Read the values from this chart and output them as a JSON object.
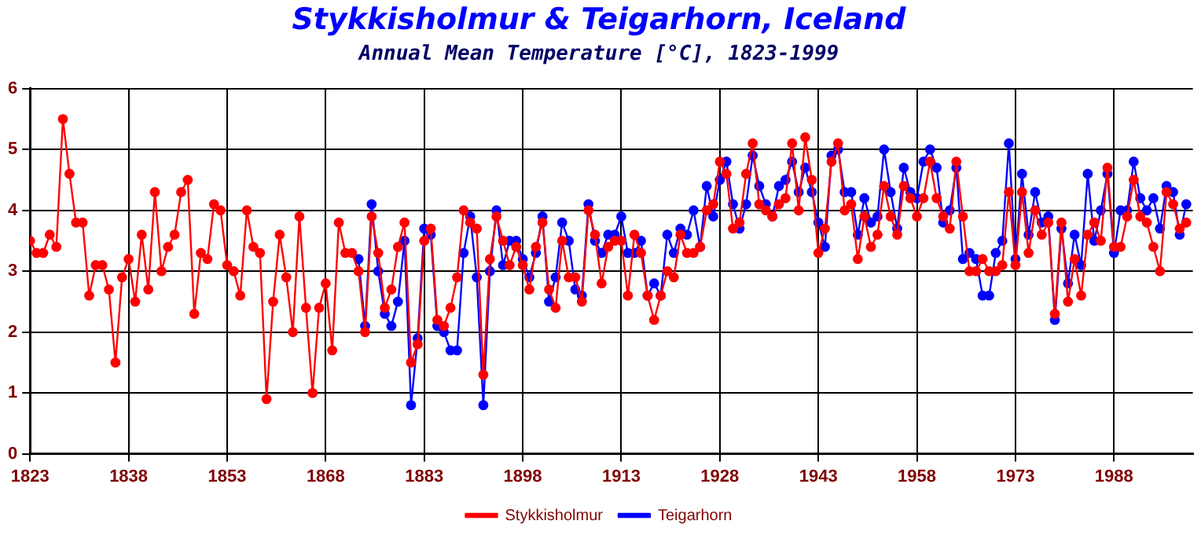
{
  "chart_data": {
    "type": "line",
    "title": "Stykkisholmur & Teigarhorn, Iceland",
    "subtitle": "Annual Mean Temperature [°C], 1823-1999",
    "xlim": [
      1823,
      2000
    ],
    "xticks": [
      1823,
      1838,
      1853,
      1868,
      1883,
      1898,
      1913,
      1928,
      1943,
      1958,
      1973,
      1988
    ],
    "ylim": [
      0,
      6
    ],
    "yticks": [
      0,
      1,
      2,
      3,
      4,
      5,
      6
    ],
    "grid": true,
    "legend": "bottom",
    "marker": "circle",
    "line_style": "solid",
    "series": [
      {
        "name": "Stykkisholmur",
        "color": "#ff0000",
        "x": [
          1823,
          1824,
          1825,
          1826,
          1827,
          1828,
          1829,
          1830,
          1831,
          1832,
          1833,
          1834,
          1835,
          1836,
          1837,
          1838,
          1839,
          1840,
          1841,
          1842,
          1843,
          1844,
          1845,
          1846,
          1847,
          1848,
          1849,
          1850,
          1851,
          1852,
          1853,
          1854,
          1855,
          1856,
          1857,
          1858,
          1859,
          1860,
          1861,
          1862,
          1863,
          1864,
          1865,
          1866,
          1867,
          1868,
          1869,
          1870,
          1871,
          1872,
          1873,
          1874,
          1875,
          1876,
          1877,
          1878,
          1879,
          1880,
          1881,
          1882,
          1883,
          1884,
          1885,
          1886,
          1887,
          1888,
          1889,
          1890,
          1891,
          1892,
          1893,
          1894,
          1895,
          1896,
          1897,
          1898,
          1899,
          1900,
          1901,
          1902,
          1903,
          1904,
          1905,
          1906,
          1907,
          1908,
          1909,
          1910,
          1911,
          1912,
          1913,
          1914,
          1915,
          1916,
          1917,
          1918,
          1919,
          1920,
          1921,
          1922,
          1923,
          1924,
          1925,
          1926,
          1927,
          1928,
          1929,
          1930,
          1931,
          1932,
          1933,
          1934,
          1935,
          1936,
          1937,
          1938,
          1939,
          1940,
          1941,
          1942,
          1943,
          1944,
          1945,
          1946,
          1947,
          1948,
          1949,
          1950,
          1951,
          1952,
          1953,
          1954,
          1955,
          1956,
          1957,
          1958,
          1959,
          1960,
          1961,
          1962,
          1963,
          1964,
          1965,
          1966,
          1967,
          1968,
          1969,
          1970,
          1971,
          1972,
          1973,
          1974,
          1975,
          1976,
          1977,
          1978,
          1979,
          1980,
          1981,
          1982,
          1983,
          1984,
          1985,
          1986,
          1987,
          1988,
          1989,
          1990,
          1991,
          1992,
          1993,
          1994,
          1995,
          1996,
          1997,
          1998,
          1999
        ],
        "values": [
          3.5,
          3.3,
          3.3,
          3.6,
          3.4,
          5.5,
          4.6,
          3.8,
          3.8,
          2.6,
          3.1,
          3.1,
          2.7,
          1.5,
          2.9,
          3.2,
          2.5,
          3.6,
          2.7,
          4.3,
          3.0,
          3.4,
          3.6,
          4.3,
          4.5,
          2.3,
          3.3,
          3.2,
          4.1,
          4.0,
          3.1,
          3.0,
          2.6,
          4.0,
          3.4,
          3.3,
          0.9,
          2.5,
          3.6,
          2.9,
          2.0,
          3.9,
          2.4,
          1.0,
          2.4,
          2.8,
          1.7,
          3.8,
          3.3,
          3.3,
          3.0,
          2.0,
          3.9,
          3.3,
          2.4,
          2.7,
          3.4,
          3.8,
          1.5,
          1.8,
          3.5,
          3.7,
          2.2,
          2.1,
          2.4,
          2.9,
          4.0,
          3.8,
          3.7,
          1.3,
          3.2,
          3.9,
          3.5,
          3.1,
          3.4,
          3.1,
          2.7,
          3.4,
          3.8,
          2.7,
          2.4,
          3.5,
          2.9,
          2.9,
          2.5,
          4.0,
          3.6,
          2.8,
          3.4,
          3.5,
          3.5,
          2.6,
          3.6,
          3.3,
          2.6,
          2.2,
          2.6,
          3.0,
          2.9,
          3.6,
          3.3,
          3.3,
          3.4,
          4.0,
          4.1,
          4.8,
          4.6,
          3.7,
          3.8,
          4.6,
          5.1,
          4.1,
          4.0,
          3.9,
          4.1,
          4.2,
          5.1,
          4.0,
          5.2,
          4.5,
          3.3,
          3.7,
          4.8,
          5.1,
          4.0,
          4.1,
          3.2,
          3.9,
          3.4,
          3.6,
          4.4,
          3.9,
          3.6,
          4.4,
          4.2,
          3.9,
          4.2,
          4.8,
          4.2,
          3.9,
          3.7,
          4.8,
          3.9,
          3.0,
          3.0,
          3.2,
          3.0,
          3.0,
          3.1,
          4.3,
          3.1,
          4.3,
          3.3,
          4.0,
          3.6,
          3.8,
          2.3,
          3.8,
          2.5,
          3.2,
          2.6,
          3.6,
          3.8,
          3.5,
          4.7,
          3.4,
          3.4,
          3.9,
          4.5,
          3.9,
          3.8,
          3.4,
          3.0,
          4.3,
          4.1,
          3.7,
          3.8
        ]
      },
      {
        "name": "Teigarhorn",
        "color": "#0000ff",
        "x": [
          1873,
          1874,
          1875,
          1876,
          1877,
          1878,
          1879,
          1880,
          1881,
          1882,
          1883,
          1884,
          1885,
          1886,
          1887,
          1888,
          1889,
          1890,
          1891,
          1892,
          1893,
          1894,
          1895,
          1896,
          1897,
          1898,
          1899,
          1900,
          1901,
          1902,
          1903,
          1904,
          1905,
          1906,
          1907,
          1908,
          1909,
          1910,
          1911,
          1912,
          1913,
          1914,
          1915,
          1916,
          1917,
          1918,
          1919,
          1920,
          1921,
          1922,
          1923,
          1924,
          1925,
          1926,
          1927,
          1928,
          1929,
          1930,
          1931,
          1932,
          1933,
          1934,
          1935,
          1936,
          1937,
          1938,
          1939,
          1940,
          1941,
          1942,
          1943,
          1944,
          1945,
          1946,
          1947,
          1948,
          1949,
          1950,
          1951,
          1952,
          1953,
          1954,
          1955,
          1956,
          1957,
          1958,
          1959,
          1960,
          1961,
          1962,
          1963,
          1964,
          1965,
          1966,
          1967,
          1968,
          1969,
          1970,
          1971,
          1972,
          1973,
          1974,
          1975,
          1976,
          1977,
          1978,
          1979,
          1980,
          1981,
          1982,
          1983,
          1984,
          1985,
          1986,
          1987,
          1988,
          1989,
          1990,
          1991,
          1992,
          1993,
          1994,
          1995,
          1996,
          1997,
          1998,
          1999
        ],
        "values": [
          3.2,
          2.1,
          4.1,
          3.0,
          2.3,
          2.1,
          2.5,
          3.5,
          0.8,
          1.9,
          3.7,
          3.6,
          2.1,
          2.0,
          1.7,
          1.7,
          3.3,
          3.9,
          2.9,
          0.8,
          3.0,
          4.0,
          3.1,
          3.5,
          3.5,
          3.2,
          2.9,
          3.3,
          3.9,
          2.5,
          2.9,
          3.8,
          3.5,
          2.7,
          2.6,
          4.1,
          3.5,
          3.3,
          3.6,
          3.6,
          3.9,
          3.3,
          3.3,
          3.5,
          2.6,
          2.8,
          2.6,
          3.6,
          3.3,
          3.7,
          3.6,
          4.0,
          3.4,
          4.4,
          3.9,
          4.5,
          4.8,
          4.1,
          3.7,
          4.1,
          4.9,
          4.4,
          4.1,
          3.9,
          4.4,
          4.5,
          4.8,
          4.3,
          4.7,
          4.3,
          3.8,
          3.4,
          4.9,
          5.0,
          4.3,
          4.3,
          3.6,
          4.2,
          3.8,
          3.9,
          5.0,
          4.3,
          3.7,
          4.7,
          4.3,
          4.2,
          4.8,
          5.0,
          4.7,
          3.8,
          4.0,
          4.7,
          3.2,
          3.3,
          3.2,
          2.6,
          2.6,
          3.3,
          3.5,
          5.1,
          3.2,
          4.6,
          3.6,
          4.3,
          3.8,
          3.9,
          2.2,
          3.7,
          2.8,
          3.6,
          3.1,
          4.6,
          3.5,
          4.0,
          4.6,
          3.3,
          4.0,
          4.0,
          4.8,
          4.2,
          4.0,
          4.2,
          3.7,
          4.4,
          4.3,
          3.6,
          4.1
        ]
      }
    ]
  }
}
